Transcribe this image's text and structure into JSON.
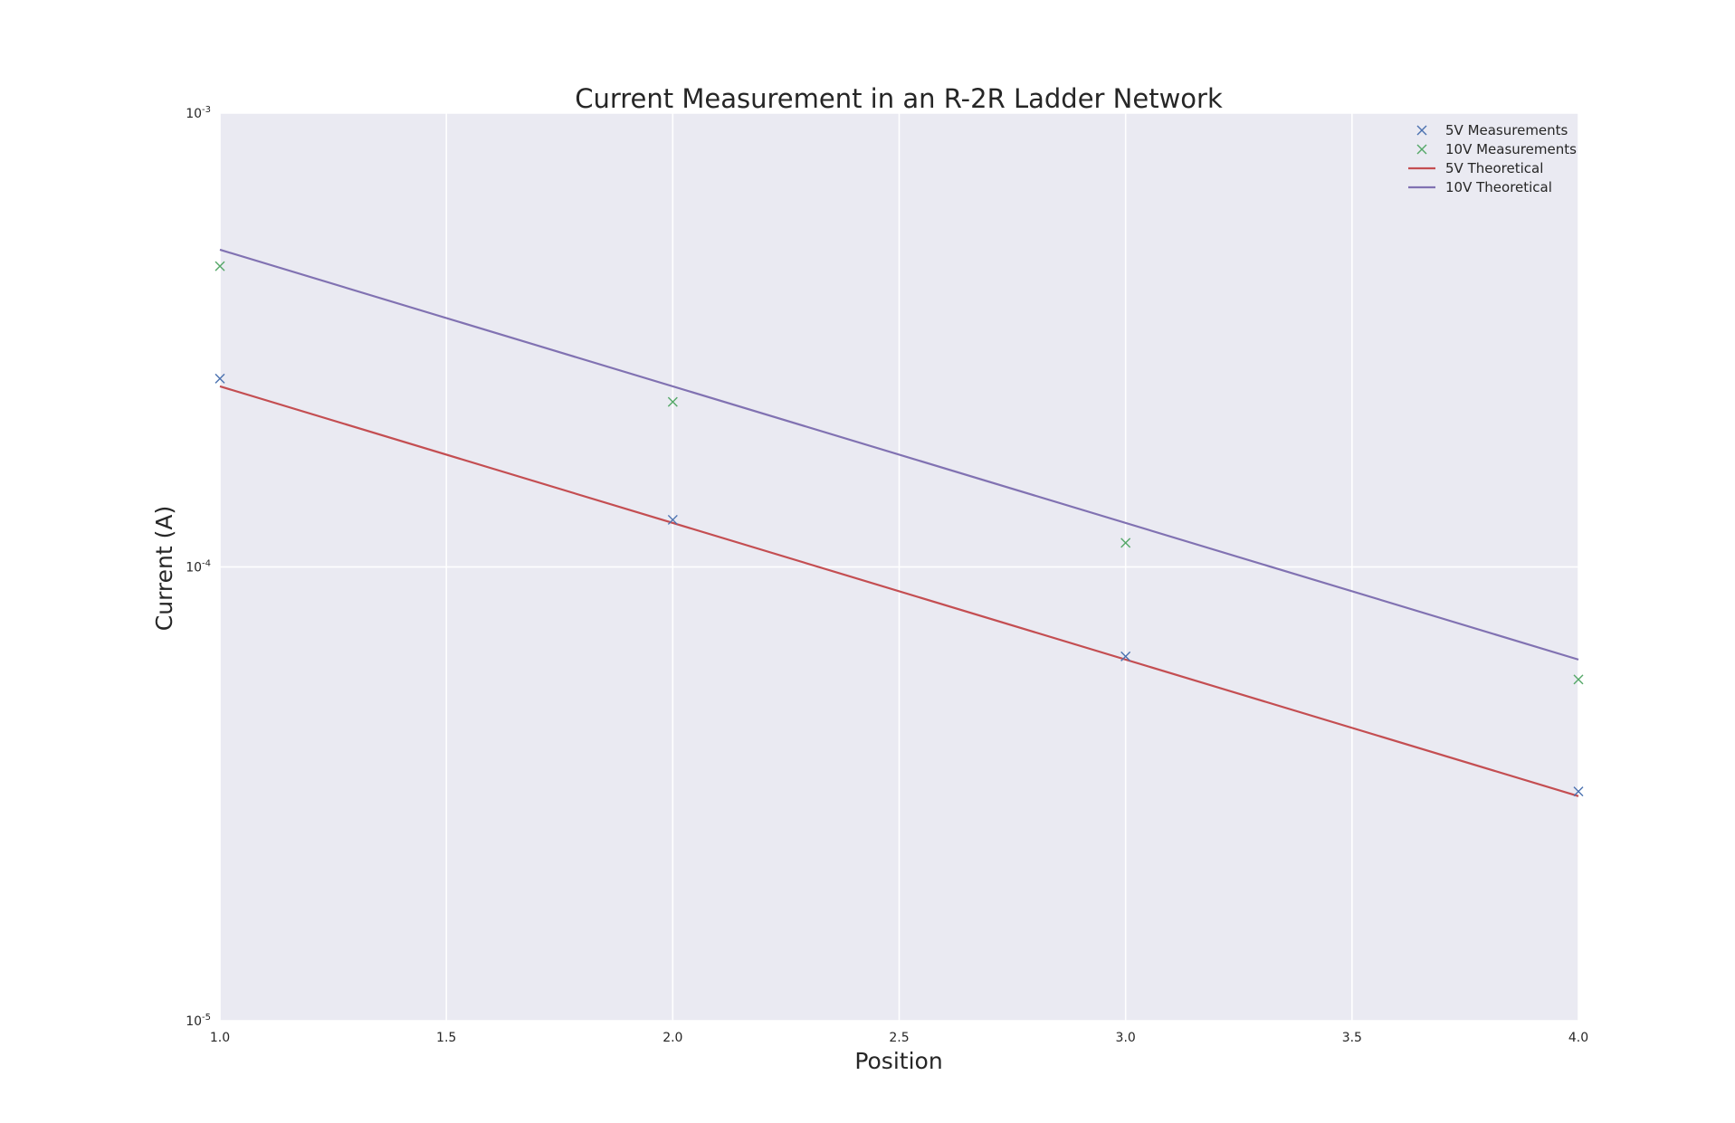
{
  "chart_data": {
    "type": "line",
    "title": "Current Measurement in an R-2R Ladder Network",
    "xlabel": "Position",
    "ylabel": "Current (A)",
    "xlim": [
      1.0,
      4.0
    ],
    "ylim": [
      1e-05,
      0.001
    ],
    "y_scale": "log",
    "grid": true,
    "legend_position": "top-right",
    "x_ticks": [
      "1.0",
      "1.5",
      "2.0",
      "2.5",
      "3.0",
      "3.5",
      "4.0"
    ],
    "y_ticks": [
      {
        "base": "10",
        "exp": "-5",
        "value": 1e-05
      },
      {
        "base": "10",
        "exp": "-4",
        "value": 0.0001
      },
      {
        "base": "10",
        "exp": "-3",
        "value": 0.001
      }
    ],
    "series": [
      {
        "name": "5V Measurements",
        "kind": "marker",
        "marker": "x",
        "color": "#4C72B0",
        "x": [
          1,
          2,
          3,
          4
        ],
        "y": [
          0.00026,
          0.000127,
          6.35e-05,
          3.2e-05
        ]
      },
      {
        "name": "10V Measurements",
        "kind": "marker",
        "marker": "x",
        "color": "#55A868",
        "x": [
          1,
          2,
          3,
          4
        ],
        "y": [
          0.00046,
          0.000231,
          0.000113,
          5.65e-05
        ]
      },
      {
        "name": "5V Theoretical",
        "kind": "line",
        "color": "#C44E52",
        "x": [
          1,
          4
        ],
        "y": [
          0.00025,
          3.125e-05
        ]
      },
      {
        "name": "10V Theoretical",
        "kind": "line",
        "color": "#8172B2",
        "x": [
          1,
          4
        ],
        "y": [
          0.0005,
          6.25e-05
        ]
      }
    ],
    "colors": {
      "plot_background": "#EAEAF2",
      "grid": "#FFFFFF"
    }
  }
}
